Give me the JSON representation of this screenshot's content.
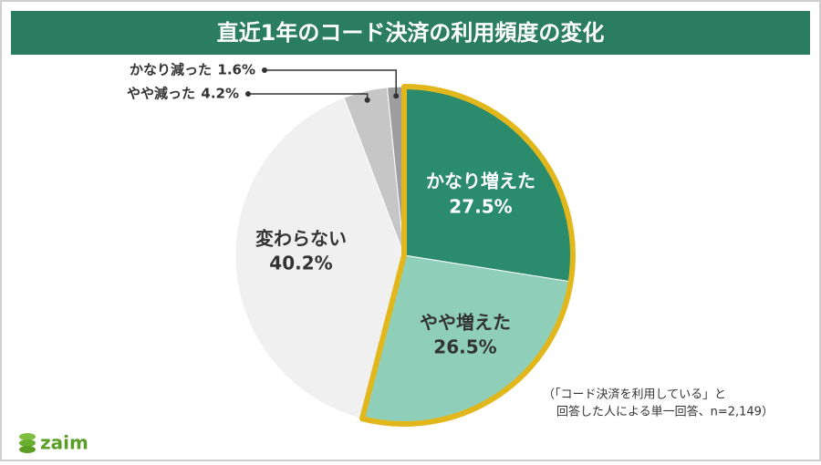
{
  "header": {
    "title": "直近1年のコード決済の利用頻度の変化"
  },
  "chart_data": {
    "type": "pie",
    "categories": [
      "かなり増えた",
      "やや増えた",
      "変わらない",
      "やや減った",
      "かなり減った"
    ],
    "values": [
      27.5,
      26.5,
      40.2,
      4.2,
      1.6
    ],
    "value_labels": [
      "27.5%",
      "26.5%",
      "40.2%",
      "4.2%",
      "1.6%"
    ],
    "colors": [
      "#2b8b6d",
      "#8fcfb9",
      "#f0f0f0",
      "#c6c6c6",
      "#9e9e9e"
    ]
  },
  "note": [
    "（「コード決済を利用している」と",
    "回答した人による単一回答、n=2,149）"
  ],
  "logo": "zaim"
}
